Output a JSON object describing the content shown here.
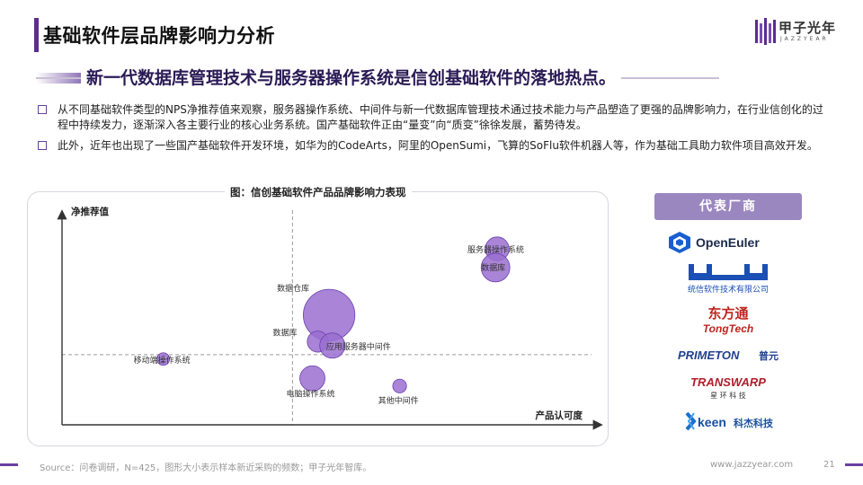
{
  "header": {
    "title": "基础软件层品牌影响力分析",
    "logo_cn": "甲子光年",
    "logo_en": "JAZZYEAR"
  },
  "subtitle": "新一代数据库管理技术与服务器操作系统是信创基础软件的落地热点。",
  "bullets": [
    "从不同基础软件类型的NPS净推荐值来观察，服务器操作系统、中间件与新一代数据库管理技术通过技术能力与产品塑造了更强的品牌影响力，在行业信创化的过程中持续发力，逐渐深入各主要行业的核心业务系统。国产基础软件正由“量变”向“质变”徐徐发展，蓄势待发。",
    "此外，近年也出现了一些国产基础软件开发环境，如华为的CodeArts，阿里的OpenSumi，飞算的SoFlu软件机器人等，作为基础工具助力软件项目高效开发。"
  ],
  "chart_data": {
    "type": "scatter",
    "title": "图：信创基础软件产品品牌影响力表现",
    "xlabel": "产品认可度",
    "ylabel": "净推荐值",
    "xlim": [
      0,
      10
    ],
    "ylim": [
      0,
      10
    ],
    "quadrant_lines": {
      "x": 4.28,
      "y": 3.38
    },
    "points": [
      {
        "label": "服务器操作系统",
        "x": 8.08,
        "y": 8.48,
        "size": 0.9
      },
      {
        "label": "数据库",
        "x": 8.05,
        "y": 7.58,
        "size": 1.3
      },
      {
        "label": "数据仓库",
        "x": 4.96,
        "y": 5.29,
        "size": 4.2
      },
      {
        "label": "数据库",
        "x": 4.75,
        "y": 4.01,
        "size": 0.7
      },
      {
        "label": "应用服务器中间件",
        "x": 5.02,
        "y": 3.82,
        "size": 1.0
      },
      {
        "label": "移动端操作系统",
        "x": 1.88,
        "y": 3.17,
        "size": 0.25
      },
      {
        "label": "电脑操作系统",
        "x": 4.65,
        "y": 2.24,
        "size": 1.0
      },
      {
        "label": "其他中间件",
        "x": 6.27,
        "y": 1.87,
        "size": 0.3
      }
    ],
    "bubble_color": "#9a6fd0"
  },
  "vendors": {
    "title": "代表厂商",
    "items": [
      {
        "name": "OpenEuler"
      },
      {
        "name": "统信软件技术有限公司"
      },
      {
        "name": "东方通",
        "sub": "TongTech"
      },
      {
        "name": "PRIMETON",
        "sub": "普元"
      },
      {
        "name": "TRANSWARP",
        "sub": "星 环 科 技"
      },
      {
        "name": "keen",
        "sub": "科杰科技"
      }
    ]
  },
  "footer": {
    "source": "Source：问卷调研，N=425，图形大小表示样本新近采购的频数；甲子光年智库。",
    "site": "www.jazzyear.com",
    "page": "21"
  },
  "colors": {
    "accent": "#5b2d8e",
    "bubble": "#9a6fd0",
    "vendor_head": "#9b87bf"
  }
}
